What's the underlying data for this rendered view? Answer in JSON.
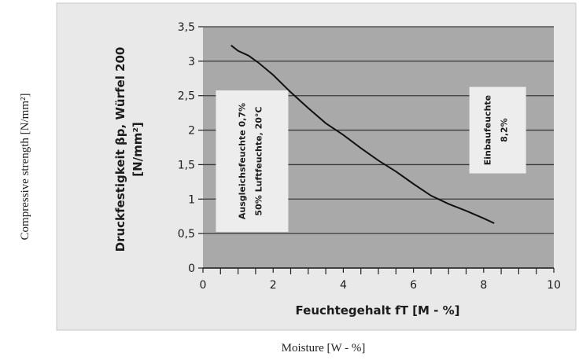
{
  "figure": {
    "outer_ylabel": "Compressive strength [N/mm²]",
    "outer_xlabel": "Moisture [W - %]"
  },
  "chart_data": {
    "type": "line",
    "ylabel_line1": "Druckfestigkeit βp, Würfel 200",
    "ylabel_line2": "[N/mm²]",
    "xlabel": "Feuchtegehalt fT [M - %]",
    "xlim": [
      0,
      10
    ],
    "ylim": [
      0,
      3.5
    ],
    "x_ticks": [
      0,
      2,
      4,
      6,
      8,
      10
    ],
    "x_tick_labels": [
      "0",
      "2",
      "4",
      "6",
      "8",
      "10"
    ],
    "y_ticks": [
      0,
      0.5,
      1,
      1.5,
      2,
      2.5,
      3,
      3.5
    ],
    "y_tick_labels": [
      "0",
      "0,5",
      "1",
      "1,5",
      "2",
      "2,5",
      "3",
      "3,5"
    ],
    "grid": "horizontal",
    "colors": {
      "plot_bg": "#a9a9a9",
      "panel_bg": "#e9e9e9",
      "line": "#111111",
      "grid": "#3a3a3a"
    },
    "series": [
      {
        "x": [
          0.8,
          1.0,
          1.3,
          1.6,
          2.0,
          2.5,
          3.0,
          3.5,
          4.0,
          4.5,
          5.0,
          5.5,
          6.0,
          6.5,
          7.0,
          7.5,
          8.0,
          8.3
        ],
        "y": [
          3.23,
          3.15,
          3.08,
          2.97,
          2.8,
          2.55,
          2.32,
          2.1,
          1.93,
          1.74,
          1.56,
          1.4,
          1.22,
          1.05,
          0.93,
          0.83,
          0.72,
          0.65
        ]
      }
    ],
    "annotations": [
      {
        "line1": "Ausgleichsfeuchte 0,7%",
        "line2": "50% Luftfeuchte, 20°C",
        "x": 1.4,
        "y": 1.55
      },
      {
        "line1": "Einbaufeuchte",
        "line2": "8,2%",
        "x": 8.4,
        "y": 2.0
      }
    ]
  }
}
